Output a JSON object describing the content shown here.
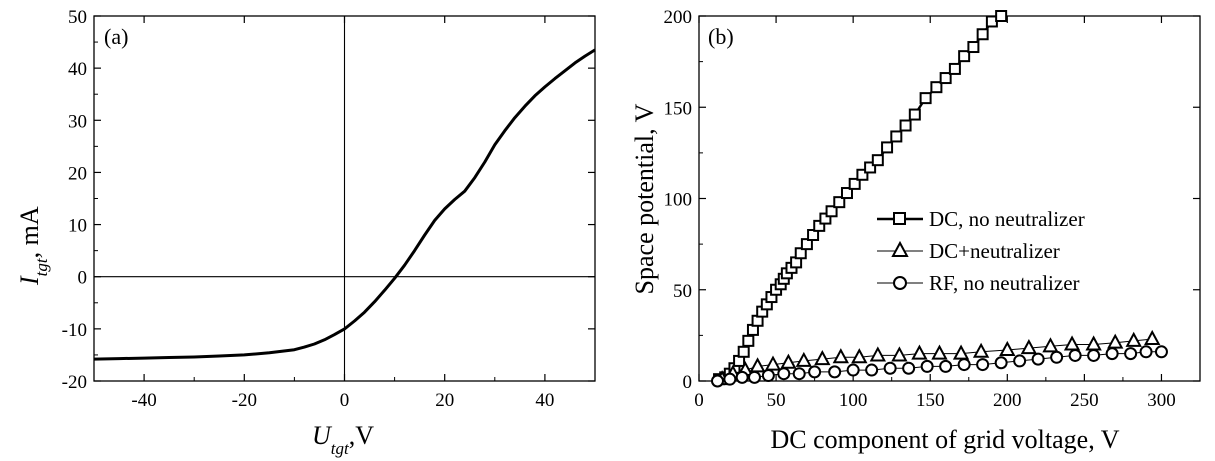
{
  "chart_data": [
    {
      "type": "line",
      "panel_label": "(a)",
      "xlabel_main": "U",
      "xlabel_sub": "tgt",
      "xlabel_unit": ",V",
      "ylabel_main": "I",
      "ylabel_sub": "tgt",
      "ylabel_unit": ", mA",
      "xlim": [
        -50,
        50
      ],
      "ylim": [
        -20,
        50
      ],
      "xticks": [
        -40,
        -20,
        0,
        20,
        40
      ],
      "yticks": [
        -20,
        -10,
        0,
        10,
        20,
        30,
        40,
        50
      ],
      "xtick_labels": [
        "-40",
        "-20",
        "0",
        "20",
        "40"
      ],
      "ytick_labels": [
        "-20",
        "-10",
        "0",
        "10",
        "20",
        "30",
        "40",
        "50"
      ],
      "reference_lines": {
        "x": 0,
        "y": 0
      },
      "series": [
        {
          "x": [
            -50,
            -45,
            -40,
            -35,
            -30,
            -25,
            -20,
            -15,
            -10,
            -8,
            -6,
            -4,
            -2,
            0,
            2,
            4,
            6,
            8,
            10,
            12,
            14,
            16,
            18,
            20,
            22,
            24,
            26,
            28,
            30,
            32,
            34,
            36,
            38,
            40,
            42,
            44,
            46,
            48,
            50
          ],
          "y": [
            -15.8,
            -15.7,
            -15.6,
            -15.5,
            -15.4,
            -15.2,
            -15.0,
            -14.6,
            -14.0,
            -13.5,
            -12.9,
            -12.1,
            -11.1,
            -10.0,
            -8.5,
            -6.8,
            -4.8,
            -2.6,
            -0.3,
            2.2,
            5.0,
            8.0,
            10.8,
            13.0,
            14.8,
            16.4,
            19.0,
            22.0,
            25.3,
            28.0,
            30.5,
            32.7,
            34.7,
            36.4,
            38.0,
            39.5,
            41.0,
            42.3,
            43.5
          ]
        }
      ]
    },
    {
      "type": "scatter",
      "panel_label": "(b)",
      "xlabel": "DC component of grid voltage, V",
      "ylabel": "Space potential, V",
      "xlim": [
        0,
        325
      ],
      "ylim": [
        0,
        200
      ],
      "xticks": [
        0,
        50,
        100,
        150,
        200,
        250,
        300
      ],
      "yticks": [
        0,
        50,
        100,
        150,
        200
      ],
      "xtick_labels": [
        "0",
        "50",
        "100",
        "150",
        "200",
        "250",
        "300"
      ],
      "ytick_labels": [
        "0",
        "50",
        "100",
        "150",
        "200"
      ],
      "legend_position": "center-right",
      "series": [
        {
          "name": "DC, no neutralizer",
          "marker": "square",
          "x": [
            13,
            17,
            20,
            23,
            26,
            29,
            32,
            35,
            38,
            41,
            44,
            47,
            50,
            53,
            55,
            57,
            60,
            63,
            66,
            70,
            74,
            78,
            82,
            86,
            91,
            96,
            101,
            106,
            111,
            116,
            122,
            128,
            134,
            140,
            147,
            154,
            160,
            166,
            172,
            178,
            184,
            190,
            196
          ],
          "y": [
            1,
            2,
            4,
            7,
            11,
            16,
            22,
            28,
            33,
            38,
            42,
            46,
            50,
            53,
            56,
            59,
            62,
            65,
            70,
            75,
            80,
            85,
            89,
            93,
            98,
            103,
            108,
            113,
            117,
            121,
            128,
            134,
            140,
            146,
            155,
            161,
            166,
            171,
            178,
            183,
            190,
            197,
            200
          ]
        },
        {
          "name": "DC+neutralizer",
          "marker": "triangle",
          "x": [
            15,
            22,
            30,
            38,
            48,
            58,
            68,
            80,
            92,
            104,
            116,
            130,
            143,
            156,
            170,
            183,
            200,
            214,
            228,
            242,
            256,
            270,
            282,
            294
          ],
          "y": [
            1,
            4,
            6,
            8,
            9,
            10,
            11,
            12,
            13,
            13,
            14,
            14,
            15,
            15,
            15,
            16,
            17,
            18,
            19,
            20,
            20,
            21,
            22,
            23
          ]
        },
        {
          "name": "RF, no neutralizer",
          "marker": "circle",
          "x": [
            12,
            20,
            28,
            36,
            45,
            55,
            65,
            75,
            88,
            100,
            112,
            124,
            136,
            148,
            160,
            172,
            184,
            196,
            208,
            220,
            232,
            244,
            256,
            268,
            280,
            290,
            300
          ],
          "y": [
            0,
            1,
            2,
            2,
            3,
            4,
            4,
            5,
            5,
            6,
            6,
            7,
            7,
            8,
            8,
            9,
            9,
            10,
            11,
            12,
            13,
            14,
            14,
            15,
            15,
            16,
            16
          ]
        }
      ]
    }
  ]
}
